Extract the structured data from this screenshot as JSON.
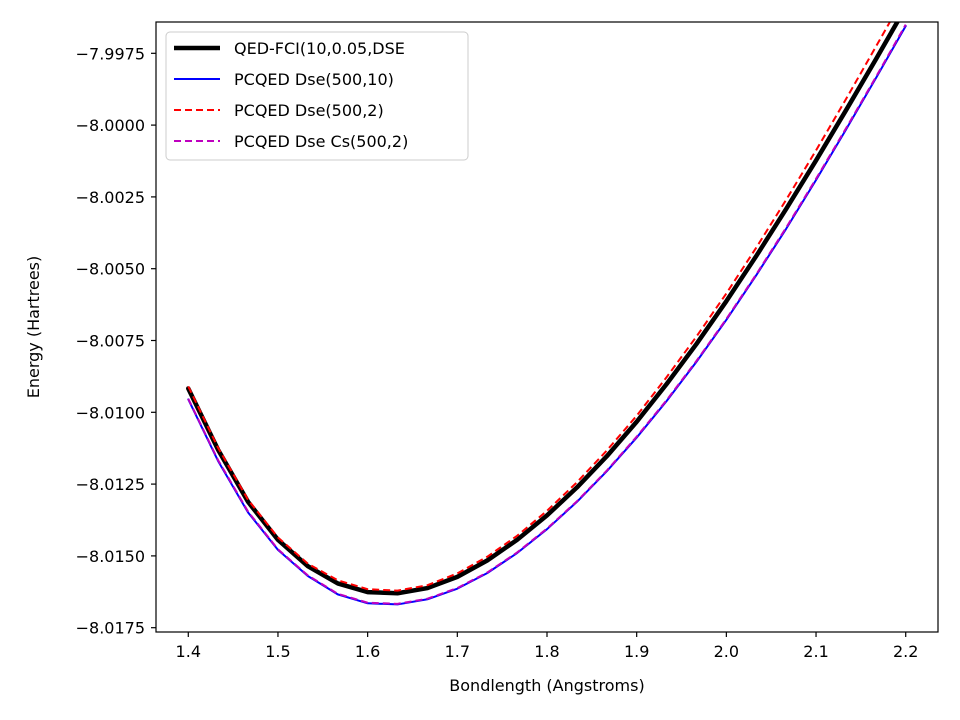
{
  "chart_data": {
    "type": "line",
    "xlabel": "Bondlength (Angstroms)",
    "ylabel": "Energy (Hartrees)",
    "xlim": [
      1.364,
      2.236
    ],
    "ylim": [
      -8.01765,
      -7.99641
    ],
    "xticks": [
      1.4,
      1.5,
      1.6,
      1.7,
      1.8,
      1.9,
      2.0,
      2.1,
      2.2
    ],
    "xtick_labels": [
      "1.4",
      "1.5",
      "1.6",
      "1.7",
      "1.8",
      "1.9",
      "2.0",
      "2.1",
      "2.2"
    ],
    "yticks": [
      -7.9975,
      -8.0,
      -8.0025,
      -8.005,
      -8.0075,
      -8.01,
      -8.0125,
      -8.015,
      -8.0175
    ],
    "ytick_labels": [
      "−7.9975",
      "−8.0000",
      "−8.0025",
      "−8.0050",
      "−8.0075",
      "−8.0100",
      "−8.0125",
      "−8.0150",
      "−8.0175"
    ],
    "grid": false,
    "legend_position": "top-left",
    "x": [
      1.4,
      1.4333,
      1.4667,
      1.5,
      1.5333,
      1.5667,
      1.6,
      1.6333,
      1.6667,
      1.7,
      1.7333,
      1.7667,
      1.8,
      1.8333,
      1.8667,
      1.9,
      1.9333,
      1.9667,
      2.0,
      2.0333,
      2.0667,
      2.1,
      2.1333,
      2.1667,
      2.2
    ],
    "series": [
      {
        "name": "QED-FCI(10,0.05,DSE",
        "color": "#000000",
        "dash": "solid",
        "width": 4.5,
        "values": [
          -8.00917,
          -8.01131,
          -8.01312,
          -8.01444,
          -8.01536,
          -8.01596,
          -8.01626,
          -8.0163,
          -8.01612,
          -8.01573,
          -8.01516,
          -8.01444,
          -8.01359,
          -8.01262,
          -8.01153,
          -8.01033,
          -8.00902,
          -8.00762,
          -8.00613,
          -8.00456,
          -8.00292,
          -8.00123,
          -7.99949,
          -7.99771,
          -7.9959
        ]
      },
      {
        "name": "PCQED Dse(500,10)",
        "color": "#0000ff",
        "dash": "solid",
        "width": 2,
        "values": [
          -8.00955,
          -8.0117,
          -8.01349,
          -8.01479,
          -8.0157,
          -8.01634,
          -8.01665,
          -8.01669,
          -8.01651,
          -8.01614,
          -8.0156,
          -8.0149,
          -8.01407,
          -8.01312,
          -8.01205,
          -8.01088,
          -8.00961,
          -8.00824,
          -8.00678,
          -8.00523,
          -8.00361,
          -8.00191,
          -8.00016,
          -7.99837,
          -7.99655
        ]
      },
      {
        "name": "PCQED Dse(500,2)",
        "color": "#ff0000",
        "dash": "dashed",
        "width": 2,
        "values": [
          -8.0091,
          -8.01124,
          -8.01305,
          -8.01436,
          -8.01527,
          -8.01585,
          -8.01616,
          -8.01621,
          -8.01602,
          -8.01561,
          -8.01503,
          -8.0143,
          -8.01343,
          -8.01244,
          -8.01133,
          -8.01012,
          -8.00878,
          -8.00736,
          -8.00586,
          -8.00427,
          -8.0026,
          -8.00088,
          -7.9991,
          -7.99727,
          -7.99544
        ]
      },
      {
        "name": "PCQED Dse Cs(500,2)",
        "color": "#bf00bf",
        "dash": "dashed",
        "width": 2,
        "values": [
          -8.00953,
          -8.01167,
          -8.01346,
          -8.01477,
          -8.01568,
          -8.01632,
          -8.01663,
          -8.01667,
          -8.01649,
          -8.01612,
          -8.01558,
          -8.01488,
          -8.01405,
          -8.0131,
          -8.01203,
          -8.01085,
          -8.00958,
          -8.00821,
          -8.00675,
          -8.0052,
          -8.00357,
          -8.00187,
          -8.00012,
          -7.99833,
          -7.9965
        ]
      }
    ]
  }
}
